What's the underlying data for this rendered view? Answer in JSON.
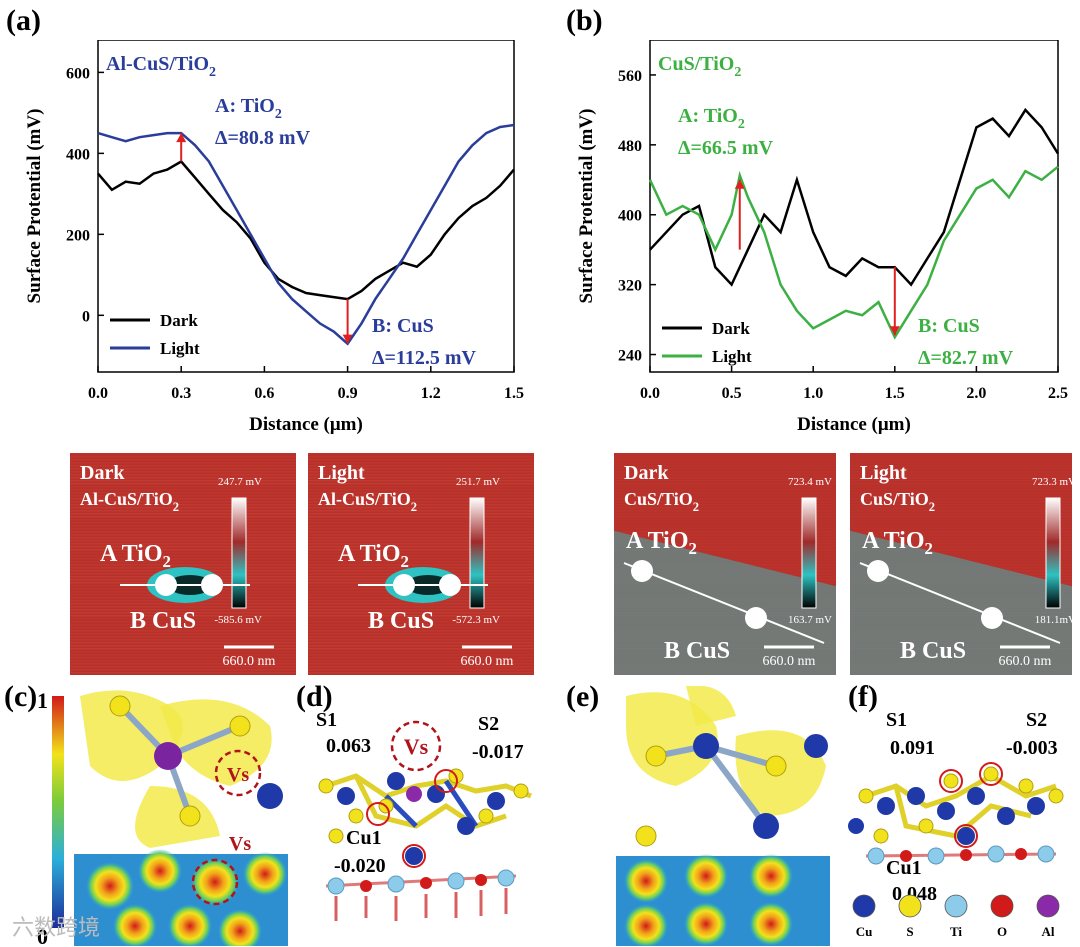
{
  "panels": {
    "a": "(a)",
    "b": "(b)",
    "c": "(c)",
    "d": "(d)",
    "e": "(e)",
    "f": "(f)"
  },
  "chart_data": [
    {
      "type": "line",
      "panel": "a",
      "title": "Al-CuS/TiO2",
      "xlabel": "Distance (μm)",
      "ylabel": "Surface Protential (mV)",
      "xlim": [
        0.0,
        1.5
      ],
      "ylim": [
        -140,
        680
      ],
      "xticks": [
        "0.0",
        "0.3",
        "0.6",
        "0.9",
        "1.2",
        "1.5"
      ],
      "yticks": [
        "0",
        "200",
        "400",
        "600"
      ],
      "legend": [
        "Dark",
        "Light"
      ],
      "annotations": {
        "a_label": "A: TiO2",
        "a_delta": "Δ=80.8 mV",
        "b_label": "B: CuS",
        "b_delta": "Δ=112.5 mV"
      },
      "series": [
        {
          "name": "Dark",
          "color": "#000000",
          "x": [
            0,
            0.05,
            0.1,
            0.15,
            0.2,
            0.25,
            0.3,
            0.35,
            0.4,
            0.45,
            0.5,
            0.55,
            0.6,
            0.65,
            0.7,
            0.75,
            0.8,
            0.85,
            0.9,
            0.95,
            1.0,
            1.05,
            1.1,
            1.15,
            1.2,
            1.25,
            1.3,
            1.35,
            1.4,
            1.45,
            1.5
          ],
          "y": [
            350,
            310,
            330,
            325,
            350,
            360,
            380,
            340,
            300,
            260,
            230,
            190,
            130,
            90,
            70,
            55,
            50,
            45,
            40,
            60,
            90,
            110,
            130,
            120,
            150,
            200,
            240,
            270,
            290,
            320,
            360
          ]
        },
        {
          "name": "Light",
          "color": "#2a3d9a",
          "x": [
            0,
            0.05,
            0.1,
            0.15,
            0.2,
            0.25,
            0.3,
            0.35,
            0.4,
            0.45,
            0.5,
            0.55,
            0.6,
            0.65,
            0.7,
            0.75,
            0.8,
            0.85,
            0.9,
            0.95,
            1.0,
            1.05,
            1.1,
            1.15,
            1.2,
            1.25,
            1.3,
            1.35,
            1.4,
            1.45,
            1.5
          ],
          "y": [
            450,
            440,
            430,
            440,
            445,
            450,
            450,
            420,
            380,
            320,
            260,
            200,
            140,
            80,
            40,
            10,
            -20,
            -40,
            -70,
            -20,
            40,
            90,
            140,
            200,
            260,
            320,
            380,
            420,
            450,
            465,
            470
          ]
        }
      ]
    },
    {
      "type": "line",
      "panel": "b",
      "title": "CuS/TiO2",
      "xlabel": "Distance (μm)",
      "ylabel": "Surface Protential (mV)",
      "xlim": [
        0.0,
        2.5
      ],
      "ylim": [
        220,
        600
      ],
      "xticks": [
        "0.0",
        "0.5",
        "1.0",
        "1.5",
        "2.0",
        "2.5"
      ],
      "yticks": [
        "240",
        "320",
        "400",
        "480",
        "560"
      ],
      "legend": [
        "Dark",
        "Light"
      ],
      "annotations": {
        "a_label": "A: TiO2",
        "a_delta": "Δ=66.5 mV",
        "b_label": "B: CuS",
        "b_delta": "Δ=82.7 mV"
      },
      "series": [
        {
          "name": "Dark",
          "color": "#000000",
          "x": [
            0,
            0.1,
            0.2,
            0.3,
            0.4,
            0.5,
            0.6,
            0.7,
            0.8,
            0.9,
            1.0,
            1.1,
            1.2,
            1.3,
            1.4,
            1.5,
            1.6,
            1.7,
            1.8,
            1.9,
            2.0,
            2.1,
            2.2,
            2.3,
            2.4,
            2.5
          ],
          "y": [
            360,
            380,
            400,
            410,
            340,
            320,
            360,
            400,
            380,
            440,
            380,
            340,
            330,
            350,
            340,
            340,
            320,
            350,
            380,
            440,
            500,
            510,
            490,
            520,
            500,
            470
          ]
        },
        {
          "name": "Light",
          "color": "#3cb043",
          "x": [
            0,
            0.1,
            0.2,
            0.3,
            0.4,
            0.5,
            0.55,
            0.6,
            0.7,
            0.8,
            0.9,
            1.0,
            1.1,
            1.2,
            1.3,
            1.4,
            1.5,
            1.6,
            1.7,
            1.8,
            1.9,
            2.0,
            2.1,
            2.2,
            2.3,
            2.4,
            2.5
          ],
          "y": [
            440,
            400,
            410,
            400,
            360,
            400,
            445,
            420,
            380,
            320,
            290,
            270,
            280,
            290,
            285,
            300,
            260,
            290,
            320,
            370,
            400,
            430,
            440,
            420,
            450,
            440,
            455
          ]
        }
      ]
    }
  ],
  "maps": [
    {
      "mode": "Dark",
      "sample": "Al-CuS/TiO2",
      "max": "247.7 mV",
      "min": "-585.6 mV",
      "a": "A TiO2",
      "b": "B CuS",
      "scale": "660.0 nm"
    },
    {
      "mode": "Light",
      "sample": "Al-CuS/TiO2",
      "max": "251.7 mV",
      "min": "-572.3 mV",
      "a": "A TiO2",
      "b": "B CuS",
      "scale": "660.0 nm"
    },
    {
      "mode": "Dark",
      "sample": "CuS/TiO2",
      "max": "723.4 mV",
      "min": "163.7 mV",
      "a": "A TiO2",
      "b": "B CuS",
      "scale": "660.0 nm"
    },
    {
      "mode": "Light",
      "sample": "CuS/TiO2",
      "max": "723.3 mV",
      "min": "181.1mV",
      "a": "A TiO2",
      "b": "B CuS",
      "scale": "660.0 nm"
    }
  ],
  "colorbar": {
    "max": "1",
    "min": "0"
  },
  "panel_c": {
    "vs1": "Vs",
    "vs2": "Vs"
  },
  "panel_d": {
    "s1": "S1",
    "s1_val": "0.063",
    "vs": "Vs",
    "s2": "S2",
    "s2_val": "-0.017",
    "cu1": "Cu1",
    "cu1_val": "-0.020"
  },
  "panel_f": {
    "s1": "S1",
    "s1_val": "0.091",
    "s2": "S2",
    "s2_val": "-0.003",
    "cu1": "Cu1",
    "cu1_val": "0.048"
  },
  "legend_atoms": [
    {
      "label": "Cu",
      "color": "#1f3aa8"
    },
    {
      "label": "S",
      "color": "#f2e21b"
    },
    {
      "label": "Ti",
      "color": "#8ccbea"
    },
    {
      "label": "O",
      "color": "#d11a1a"
    },
    {
      "label": "Al",
      "color": "#8a2aa8"
    }
  ],
  "watermark": "六数跨境"
}
